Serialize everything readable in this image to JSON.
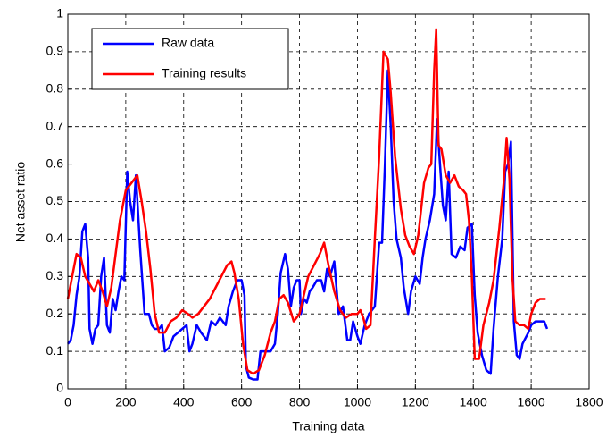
{
  "chart_data": {
    "type": "line",
    "x_label": "Training data",
    "y_label": "Net asset ratio",
    "xlim": [
      0,
      1800
    ],
    "xticks": [
      0,
      200,
      400,
      600,
      800,
      1000,
      1200,
      1400,
      1600,
      1800
    ],
    "ylim": [
      0,
      1
    ],
    "yticks": [
      0,
      0.1,
      0.2,
      0.3,
      0.4,
      0.5,
      0.6,
      0.7,
      0.8,
      0.9,
      1
    ],
    "grid": true,
    "legend": "upper left",
    "series": [
      {
        "name": "Raw data",
        "color": "#0000ff",
        "x": [
          0,
          10,
          20,
          30,
          40,
          50,
          60,
          70,
          75,
          85,
          95,
          105,
          115,
          125,
          135,
          145,
          155,
          165,
          175,
          185,
          195,
          205,
          215,
          225,
          235,
          250,
          265,
          280,
          290,
          300,
          315,
          325,
          335,
          350,
          365,
          380,
          395,
          410,
          420,
          430,
          445,
          460,
          470,
          480,
          495,
          510,
          525,
          545,
          555,
          570,
          585,
          600,
          610,
          615,
          625,
          640,
          655,
          665,
          680,
          700,
          715,
          725,
          735,
          750,
          760,
          770,
          780,
          790,
          800,
          805,
          815,
          825,
          835,
          845,
          860,
          875,
          885,
          895,
          905,
          920,
          935,
          950,
          965,
          975,
          985,
          1000,
          1010,
          1025,
          1040,
          1060,
          1075,
          1085,
          1095,
          1105,
          1115,
          1125,
          1135,
          1150,
          1160,
          1175,
          1185,
          1200,
          1215,
          1225,
          1235,
          1250,
          1265,
          1275,
          1285,
          1295,
          1305,
          1315,
          1325,
          1340,
          1355,
          1370,
          1380,
          1395,
          1405,
          1415,
          1430,
          1445,
          1460,
          1470,
          1485,
          1500,
          1510,
          1520,
          1530,
          1540,
          1550,
          1560,
          1570,
          1590,
          1600,
          1615,
          1630,
          1645,
          1655
        ],
        "values": [
          0.12,
          0.13,
          0.17,
          0.25,
          0.3,
          0.42,
          0.44,
          0.35,
          0.16,
          0.12,
          0.16,
          0.17,
          0.3,
          0.35,
          0.17,
          0.15,
          0.24,
          0.21,
          0.26,
          0.3,
          0.29,
          0.58,
          0.5,
          0.45,
          0.57,
          0.37,
          0.2,
          0.2,
          0.17,
          0.16,
          0.16,
          0.17,
          0.1,
          0.11,
          0.14,
          0.15,
          0.16,
          0.17,
          0.1,
          0.12,
          0.17,
          0.15,
          0.14,
          0.13,
          0.18,
          0.17,
          0.19,
          0.17,
          0.22,
          0.26,
          0.29,
          0.29,
          0.25,
          0.06,
          0.03,
          0.025,
          0.025,
          0.1,
          0.1,
          0.1,
          0.12,
          0.2,
          0.31,
          0.36,
          0.32,
          0.22,
          0.27,
          0.29,
          0.29,
          0.2,
          0.24,
          0.23,
          0.26,
          0.27,
          0.29,
          0.29,
          0.26,
          0.32,
          0.3,
          0.34,
          0.2,
          0.22,
          0.13,
          0.13,
          0.18,
          0.14,
          0.12,
          0.17,
          0.2,
          0.22,
          0.39,
          0.39,
          0.6,
          0.85,
          0.7,
          0.5,
          0.4,
          0.35,
          0.27,
          0.2,
          0.26,
          0.3,
          0.28,
          0.35,
          0.4,
          0.45,
          0.52,
          0.72,
          0.6,
          0.49,
          0.45,
          0.58,
          0.36,
          0.35,
          0.38,
          0.37,
          0.43,
          0.44,
          0.25,
          0.15,
          0.09,
          0.05,
          0.04,
          0.16,
          0.3,
          0.4,
          0.58,
          0.6,
          0.66,
          0.18,
          0.09,
          0.08,
          0.12,
          0.15,
          0.17,
          0.18,
          0.18,
          0.18,
          0.16
        ]
      },
      {
        "name": "Training results",
        "color": "#ff0000",
        "x": [
          0,
          15,
          30,
          45,
          60,
          75,
          90,
          105,
          120,
          135,
          150,
          165,
          180,
          200,
          220,
          240,
          255,
          270,
          285,
          300,
          315,
          335,
          355,
          375,
          395,
          415,
          430,
          450,
          470,
          490,
          510,
          530,
          550,
          565,
          575,
          590,
          605,
          620,
          640,
          660,
          680,
          700,
          715,
          730,
          745,
          760,
          780,
          800,
          815,
          830,
          850,
          870,
          885,
          900,
          920,
          940,
          960,
          980,
          1000,
          1010,
          1020,
          1030,
          1045,
          1060,
          1075,
          1090,
          1105,
          1115,
          1130,
          1150,
          1165,
          1180,
          1195,
          1210,
          1230,
          1245,
          1255,
          1265,
          1272,
          1280,
          1290,
          1305,
          1320,
          1335,
          1350,
          1365,
          1375,
          1385,
          1395,
          1405,
          1420,
          1435,
          1455,
          1470,
          1490,
          1505,
          1515,
          1525,
          1535,
          1545,
          1560,
          1575,
          1590,
          1600,
          1615,
          1630,
          1650
        ],
        "values": [
          0.24,
          0.3,
          0.36,
          0.35,
          0.3,
          0.28,
          0.26,
          0.29,
          0.26,
          0.22,
          0.27,
          0.36,
          0.45,
          0.53,
          0.55,
          0.57,
          0.5,
          0.42,
          0.32,
          0.2,
          0.15,
          0.15,
          0.18,
          0.19,
          0.21,
          0.2,
          0.19,
          0.2,
          0.22,
          0.24,
          0.27,
          0.3,
          0.33,
          0.34,
          0.31,
          0.24,
          0.12,
          0.05,
          0.04,
          0.05,
          0.09,
          0.15,
          0.18,
          0.24,
          0.25,
          0.23,
          0.18,
          0.2,
          0.25,
          0.3,
          0.33,
          0.36,
          0.39,
          0.33,
          0.26,
          0.21,
          0.19,
          0.2,
          0.2,
          0.21,
          0.19,
          0.16,
          0.17,
          0.4,
          0.62,
          0.9,
          0.88,
          0.79,
          0.62,
          0.48,
          0.41,
          0.38,
          0.36,
          0.41,
          0.55,
          0.59,
          0.6,
          0.85,
          0.96,
          0.65,
          0.64,
          0.57,
          0.55,
          0.57,
          0.54,
          0.53,
          0.52,
          0.45,
          0.3,
          0.08,
          0.08,
          0.17,
          0.23,
          0.29,
          0.43,
          0.55,
          0.67,
          0.56,
          0.3,
          0.18,
          0.17,
          0.17,
          0.16,
          0.2,
          0.23,
          0.24,
          0.24
        ]
      }
    ]
  }
}
